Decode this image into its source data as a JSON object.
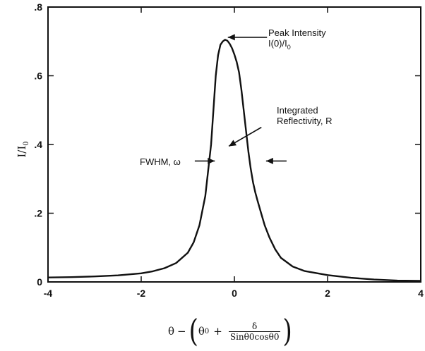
{
  "chart_data": {
    "type": "line",
    "xlim": [
      -4,
      4
    ],
    "ylim": [
      0,
      0.8
    ],
    "x_ticks": [
      {
        "value": -4,
        "label": "-4"
      },
      {
        "value": -2,
        "label": "-2"
      },
      {
        "value": 0,
        "label": "0"
      },
      {
        "value": 2,
        "label": "2"
      },
      {
        "value": 4,
        "label": "4"
      }
    ],
    "y_ticks": [
      {
        "value": 0,
        "label": "0"
      },
      {
        "value": 0.2,
        "label": ".2"
      },
      {
        "value": 0.4,
        "label": ".4"
      },
      {
        "value": 0.6,
        "label": ".6"
      },
      {
        "value": 0.8,
        "label": ".8"
      }
    ],
    "ylabel": {
      "main": "I/I",
      "sub": "0"
    },
    "xlabel": {
      "theta": "θ",
      "minus": "−",
      "theta0": "θ",
      "sub0": "0",
      "plus": "+",
      "delta": "δ",
      "denominator": "Sinθ0cosθ0"
    },
    "grid": false,
    "series": [
      {
        "x": [
          -4,
          -3.5,
          -3,
          -2.5,
          -2,
          -1.75,
          -1.5,
          -1.25,
          -1,
          -0.875,
          -0.75,
          -0.625,
          -0.5,
          -0.45,
          -0.4,
          -0.35,
          -0.3,
          -0.25,
          -0.2,
          -0.15,
          -0.1,
          -0.05,
          0,
          0.05,
          0.1,
          0.15,
          0.2,
          0.25,
          0.3,
          0.35,
          0.4,
          0.45,
          0.5,
          0.575,
          0.65,
          0.75,
          0.875,
          1,
          1.25,
          1.5,
          2,
          2.5,
          3,
          3.5,
          4
        ],
        "y": [
          0.013,
          0.014,
          0.016,
          0.019,
          0.025,
          0.031,
          0.04,
          0.055,
          0.085,
          0.115,
          0.165,
          0.25,
          0.4,
          0.5,
          0.6,
          0.66,
          0.69,
          0.7,
          0.705,
          0.702,
          0.693,
          0.68,
          0.662,
          0.64,
          0.61,
          0.56,
          0.5,
          0.44,
          0.38,
          0.33,
          0.29,
          0.26,
          0.235,
          0.2,
          0.165,
          0.13,
          0.095,
          0.07,
          0.045,
          0.032,
          0.02,
          0.012,
          0.007,
          0.004,
          0.003
        ]
      }
    ],
    "annotations": [
      {
        "id": "peak",
        "line1": "Peak Intensity",
        "line2_main": "I(0)/I",
        "line2_sub": "0",
        "arrow_from": [
          0.7,
          0.712
        ],
        "arrow_to": [
          -0.14,
          0.712
        ]
      },
      {
        "id": "integrated",
        "line1": "Integrated",
        "line2": "Reflectivity, R",
        "arrow_from": [
          0.58,
          0.45
        ],
        "arrow_to": [
          -0.12,
          0.395
        ]
      },
      {
        "id": "fwhm",
        "text": "FWHM, ω",
        "arrow_left_from": [
          -0.85,
          0.352
        ],
        "arrow_left_to": [
          -0.42,
          0.352
        ],
        "arrow_right_from": [
          1.12,
          0.352
        ],
        "arrow_right_to": [
          0.68,
          0.352
        ]
      }
    ]
  }
}
